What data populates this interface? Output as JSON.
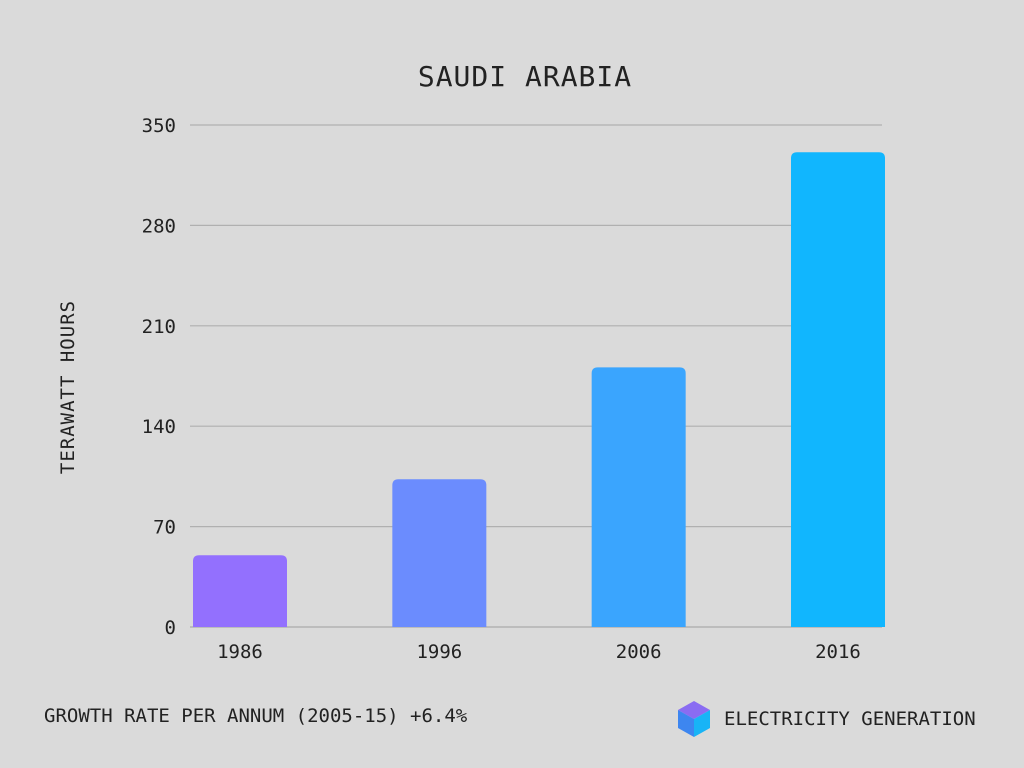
{
  "chart_data": {
    "type": "bar",
    "title": "SAUDI ARABIA",
    "ylabel": "TERAWATT HOURS",
    "xlabel": "",
    "categories": [
      "1986",
      "1996",
      "2006",
      "2016"
    ],
    "values": [
      50,
      103,
      181,
      331
    ],
    "colors": [
      "#9370fe",
      "#6b8cfe",
      "#3aa5fe",
      "#11b6fe"
    ],
    "ylim": [
      0,
      350
    ],
    "yticks": [
      "0",
      "70",
      "140",
      "210",
      "280",
      "350"
    ],
    "grid": true,
    "gridline_color": "#b0b0b0",
    "background": "#dadada"
  },
  "footer": {
    "growth_label": "GROWTH RATE PER ANNUM (2005-15) +6.4%",
    "legend_label": "ELECTRICITY GENERATION",
    "legend_icon": "cube-icon"
  }
}
